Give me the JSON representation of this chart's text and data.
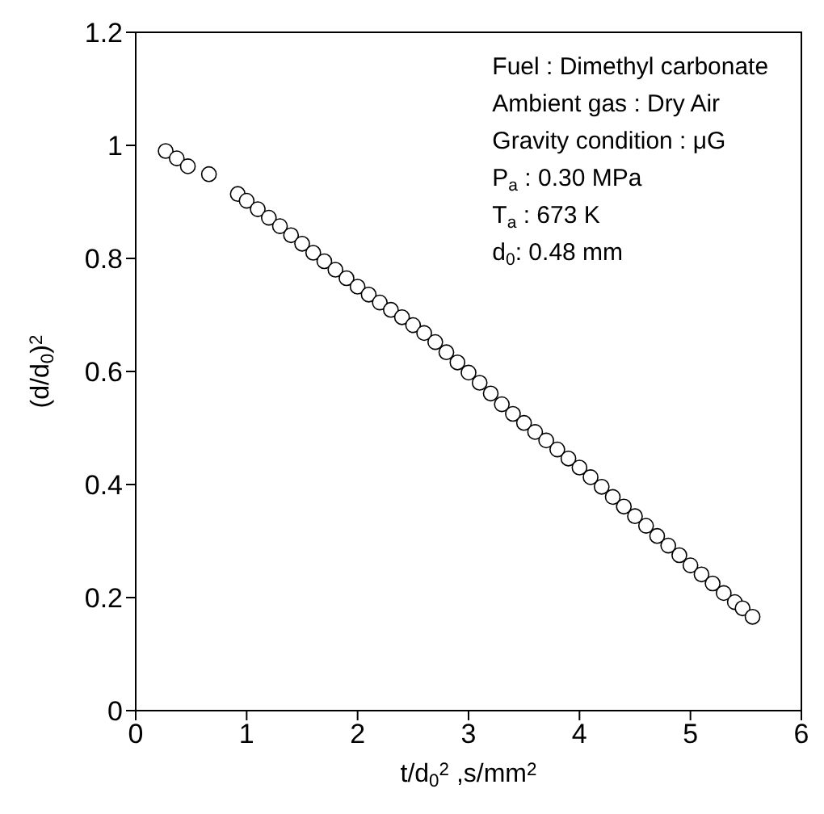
{
  "chart_data": {
    "type": "scatter",
    "xlabel": "t/d$_{0}$$^{2}$ ,s/mm$^{2}$",
    "ylabel": "(d/d$_{0}$)$^{2}$",
    "annotations": [
      "Fuel : Dimethyl carbonate",
      "Ambient gas : Dry Air",
      "Gravity condition : μG",
      "P$_{a}$ : 0.30 MPa",
      "T$_{a}$ : 673 K",
      "d$_{0}$: 0.48 mm"
    ],
    "x": [
      0.27,
      0.37,
      0.47,
      0.66,
      0.92,
      1.0,
      1.1,
      1.2,
      1.3,
      1.4,
      1.5,
      1.6,
      1.7,
      1.8,
      1.9,
      2.0,
      2.1,
      2.2,
      2.3,
      2.4,
      2.5,
      2.6,
      2.7,
      2.8,
      2.9,
      3.0,
      3.1,
      3.2,
      3.3,
      3.4,
      3.5,
      3.6,
      3.7,
      3.8,
      3.9,
      4.0,
      4.1,
      4.2,
      4.3,
      4.4,
      4.5,
      4.6,
      4.7,
      4.8,
      4.9,
      5.0,
      5.1,
      5.2,
      5.3,
      5.4,
      5.47,
      5.56
    ],
    "values": [
      0.99,
      0.977,
      0.963,
      0.949,
      0.914,
      0.902,
      0.887,
      0.872,
      0.857,
      0.841,
      0.826,
      0.81,
      0.795,
      0.78,
      0.765,
      0.75,
      0.736,
      0.722,
      0.709,
      0.696,
      0.682,
      0.668,
      0.652,
      0.634,
      0.616,
      0.598,
      0.58,
      0.561,
      0.542,
      0.525,
      0.509,
      0.493,
      0.478,
      0.462,
      0.446,
      0.43,
      0.413,
      0.396,
      0.378,
      0.361,
      0.344,
      0.327,
      0.309,
      0.292,
      0.275,
      0.257,
      0.241,
      0.225,
      0.208,
      0.192,
      0.181,
      0.166
    ],
    "color": "#ffffff",
    "marker": "circle",
    "xlim": [
      0,
      6
    ],
    "xticks": [
      0,
      1,
      2,
      3,
      4,
      5,
      6
    ],
    "ylim": [
      0,
      1.2
    ],
    "yticks": [
      0,
      0.2,
      0.4,
      0.6,
      0.8,
      1,
      1.2
    ],
    "legend": false
  }
}
